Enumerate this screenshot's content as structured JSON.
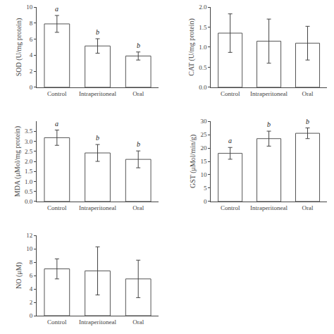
{
  "chart_data": [
    {
      "type": "bar",
      "categories": [
        "Control",
        "Intraperitoneal",
        "Oral"
      ],
      "values": [
        7.9,
        5.15,
        3.9
      ],
      "errors": [
        1.05,
        0.9,
        0.5
      ],
      "ylabel": "SOD (U/mg protein)",
      "ylim": [
        0,
        10
      ],
      "yticks": [
        0,
        2,
        4,
        6,
        8,
        10
      ],
      "annotations": [
        {
          "category": "Control",
          "text": "a"
        },
        {
          "category": "Intraperitoneal",
          "text": "b"
        },
        {
          "category": "Oral",
          "text": "b"
        }
      ],
      "color": "white",
      "grid": false
    },
    {
      "type": "bar",
      "categories": [
        "Control",
        "Intraperitoneal",
        "Oral"
      ],
      "values": [
        1.35,
        1.15,
        1.1
      ],
      "errors": [
        0.48,
        0.55,
        0.42
      ],
      "ylabel": "CAT (U/mg protein)",
      "ylim": [
        0.0,
        2.0
      ],
      "yticks": [
        {
          "value": 0.0,
          "label": "0.0"
        },
        0.5,
        {
          "value": 1.0,
          "label": "1.0"
        },
        1.5,
        {
          "value": 2.0,
          "label": "2.0"
        }
      ],
      "color": "white",
      "grid": false
    },
    {
      "type": "bar",
      "categories": [
        "Control",
        "Intraperitoneal",
        "Oral"
      ],
      "values": [
        3.18,
        2.42,
        2.1
      ],
      "errors": [
        0.38,
        0.42,
        0.42
      ],
      "ylabel": "MDA (μMol/mg protein)",
      "ylim": [
        0.0,
        4.0
      ],
      "yticks": [
        {
          "value": 0.0,
          "label": "0.0"
        },
        0.5,
        {
          "value": 1.0,
          "label": "1.0"
        },
        1.5,
        {
          "value": 2.0,
          "label": "2.0"
        },
        2.5,
        {
          "value": 3.0,
          "label": "3.0"
        },
        3.5
      ],
      "annotations": [
        {
          "category": "Control",
          "text": "a"
        },
        {
          "category": "Intraperitoneal",
          "text": "b"
        },
        {
          "category": "Oral",
          "text": "b"
        }
      ],
      "color": "white",
      "grid": false
    },
    {
      "type": "bar",
      "categories": [
        "Control",
        "Intraperitoneal",
        "Oral"
      ],
      "values": [
        18.0,
        23.5,
        25.5
      ],
      "errors": [
        2.2,
        2.8,
        2.0
      ],
      "ylabel": "GST (μMol/min/g)",
      "ylim": [
        0,
        30
      ],
      "yticks": [
        0,
        5,
        10,
        15,
        20,
        25,
        30
      ],
      "annotations": [
        {
          "category": "Control",
          "text": "a"
        },
        {
          "category": "Intraperitoneal",
          "text": "b"
        },
        {
          "category": "Oral",
          "text": "b"
        }
      ],
      "color": "white",
      "grid": false
    },
    {
      "type": "bar",
      "categories": [
        "Control",
        "Intraperitoneal",
        "Oral"
      ],
      "values": [
        7.0,
        6.7,
        5.5
      ],
      "errors": [
        1.5,
        3.6,
        2.8
      ],
      "ylabel": "NO (μM)",
      "ylim": [
        0,
        12
      ],
      "yticks": [
        0,
        2,
        4,
        6,
        8,
        10,
        12
      ],
      "color": "white",
      "grid": false
    }
  ]
}
